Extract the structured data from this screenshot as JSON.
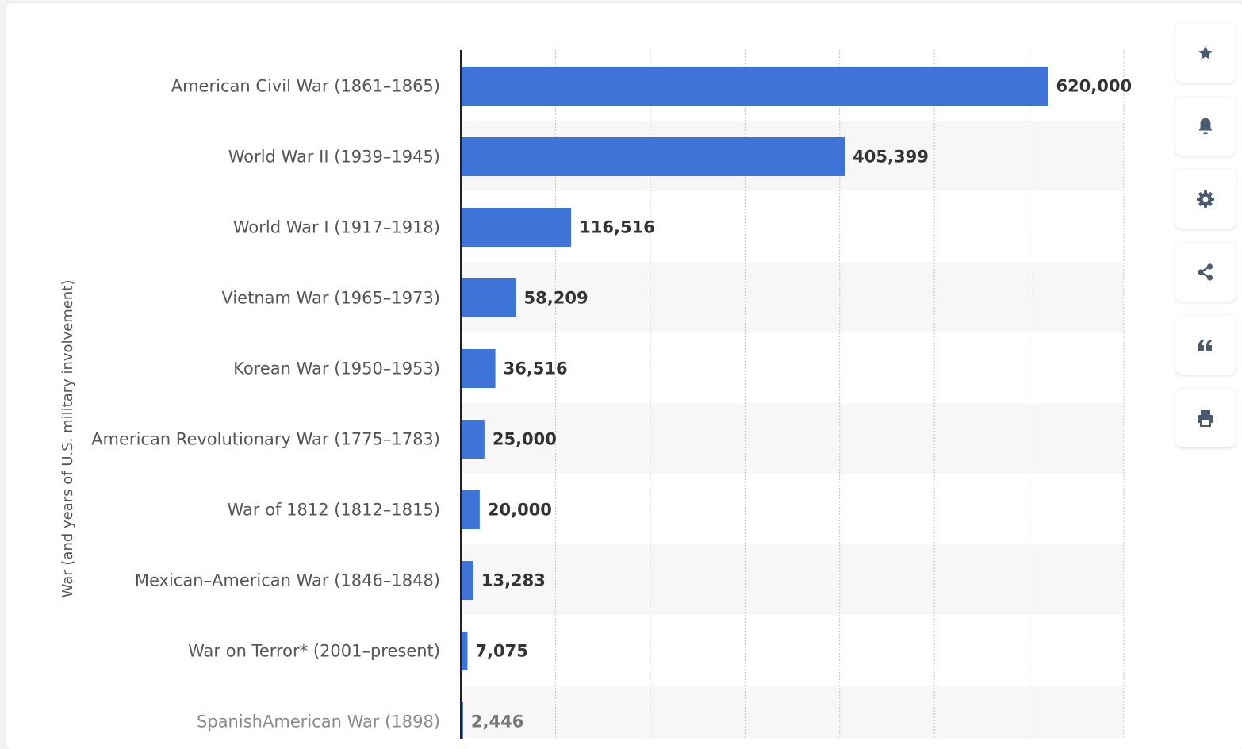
{
  "chart_data": {
    "type": "bar",
    "orientation": "horizontal",
    "ylabel": "War (and years of U.S. military involvement)",
    "categories": [
      "American Civil War (1861–1865)",
      "World War II (1939–1945)",
      "World War I (1917–1918)",
      "Vietnam War (1965–1973)",
      "Korean War (1950–1953)",
      "American Revolutionary War (1775–1783)",
      "War of 1812 (1812–1815)",
      "Mexican–American War (1846–1848)",
      "War on Terror* (2001–present)",
      "SpanishAmerican War (1898)"
    ],
    "values": [
      620000,
      405399,
      116516,
      58209,
      36516,
      25000,
      20000,
      13283,
      7075,
      2446
    ],
    "value_labels": [
      "620,000",
      "405,399",
      "116,516",
      "58,209",
      "36,516",
      "25,000",
      "20,000",
      "13,283",
      "7,075",
      "2,446"
    ],
    "xlim": [
      0,
      700000
    ],
    "grid": "vertical-dotted",
    "bar_color": "#3e73d8",
    "label_color": "#555555",
    "value_color": "#333333"
  },
  "toolbar": {
    "buttons": [
      {
        "name": "favorite-button",
        "icon": "star-icon"
      },
      {
        "name": "notification-button",
        "icon": "bell-icon"
      },
      {
        "name": "settings-button",
        "icon": "gear-icon"
      },
      {
        "name": "share-button",
        "icon": "share-icon"
      },
      {
        "name": "cite-button",
        "icon": "quote-icon"
      },
      {
        "name": "print-button",
        "icon": "printer-icon"
      }
    ],
    "icon_color": "#4a5a70"
  }
}
